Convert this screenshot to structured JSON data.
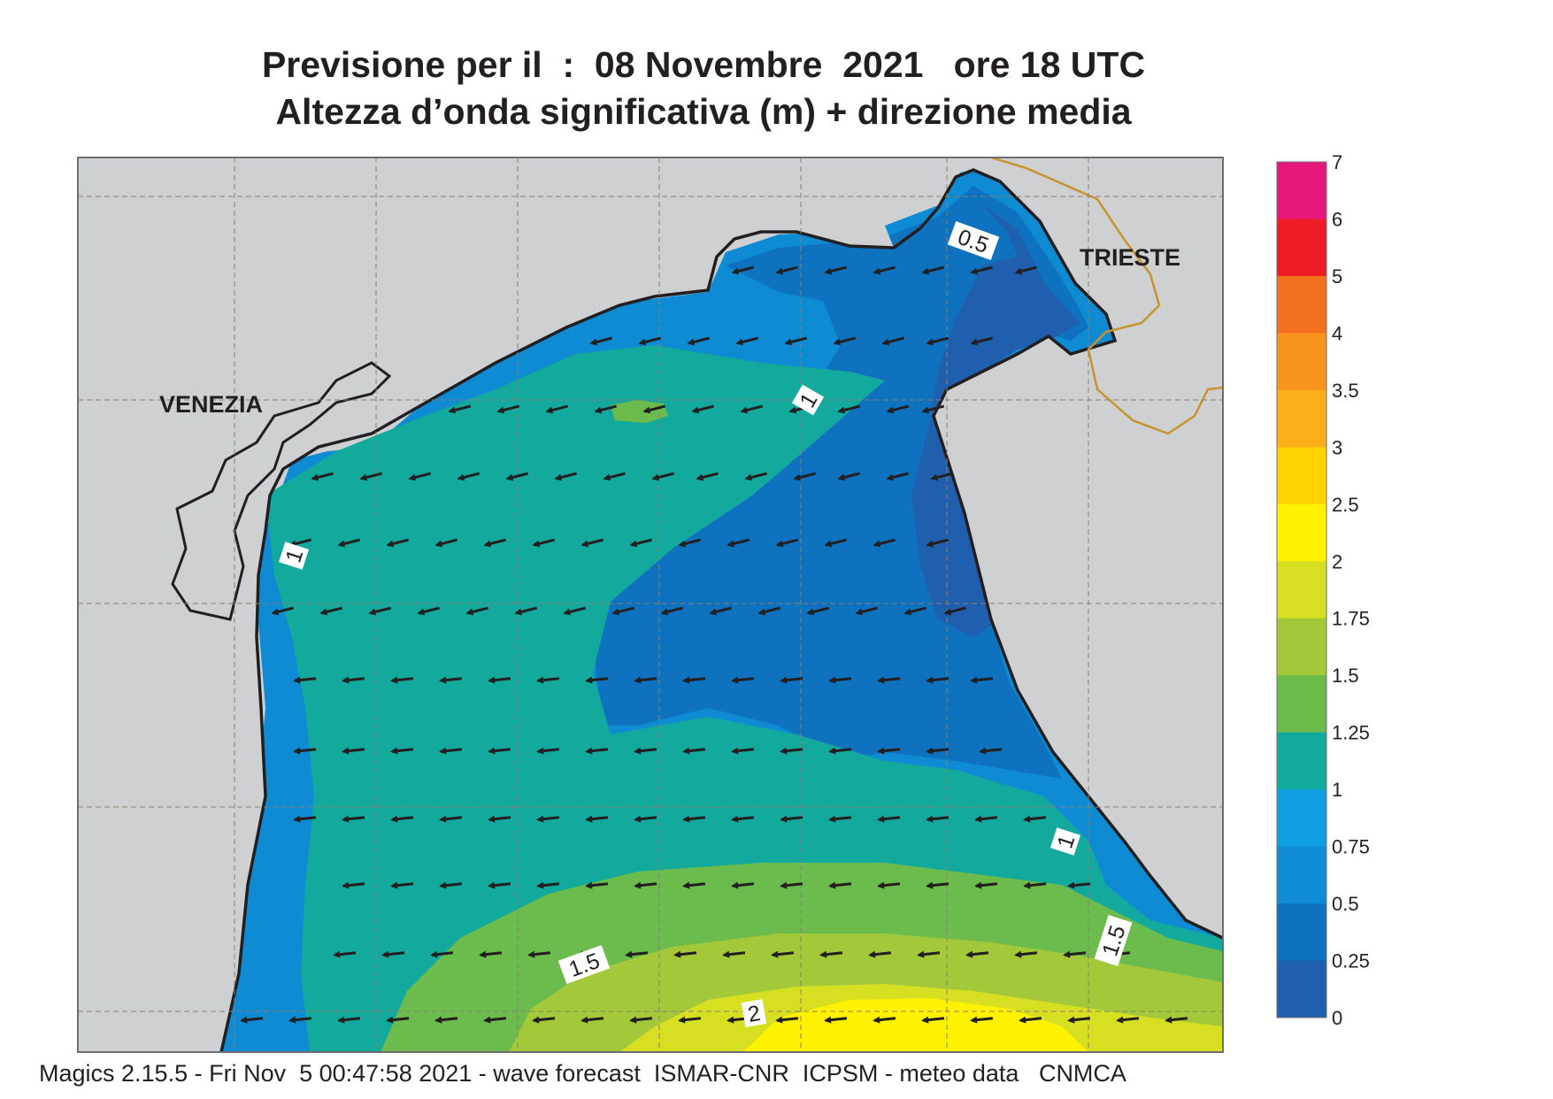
{
  "header": {
    "title_line1": "Previsione per il  :  08 Novembre  2021   ore 18 UTC",
    "title_line2": "Altezza d’onda significativa (m) + direzione media"
  },
  "map": {
    "places": [
      {
        "label": "VENEZIA"
      },
      {
        "label": "TRIESTE"
      }
    ],
    "contour_labels": [
      "0.5",
      "1",
      "1",
      "1",
      "1.5",
      "1.5",
      "2"
    ],
    "land_color": "#cfd0d2",
    "coast_color": "#231f20",
    "border_color": "#c9932c",
    "arrow_direction": "west-southwest"
  },
  "legend": {
    "ticks": [
      "7",
      "6",
      "5",
      "4",
      "3.5",
      "3",
      "2.5",
      "2",
      "1.75",
      "1.5",
      "1.25",
      "1",
      "0.75",
      "0.5",
      "0.25",
      "0"
    ],
    "colors": [
      "#e5177b",
      "#ee1c25",
      "#f37021",
      "#f7941d",
      "#fbaf1a",
      "#ffd200",
      "#fff200",
      "#d7df23",
      "#a3c93a",
      "#6cbb4d",
      "#14a99d",
      "#0f9ee0",
      "#0f8bd4",
      "#0e72be",
      "#1f5fae"
    ]
  },
  "footer": {
    "text": "Magics 2.15.5 - Fri Nov  5 00:47:58 2021 - wave forecast  ISMAR-CNR  ICPSM - meteo data   CNMCA"
  }
}
